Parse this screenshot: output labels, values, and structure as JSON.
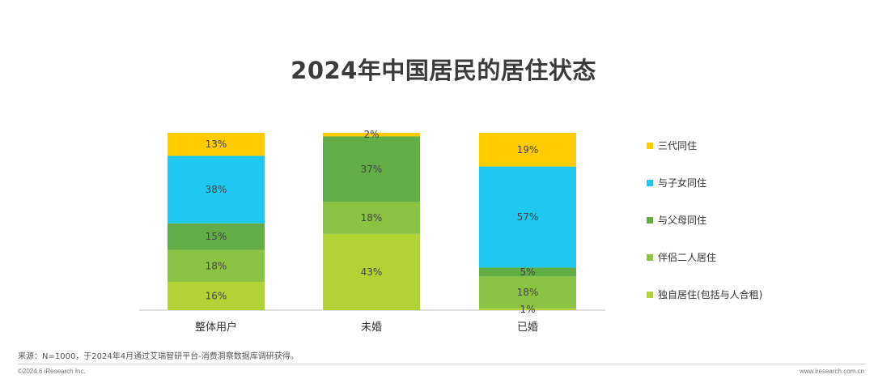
{
  "chart_data": {
    "type": "bar",
    "stacked": true,
    "normalized": true,
    "title": "2024年中国居民的居住状态",
    "categories": [
      "整体用户",
      "未婚",
      "已婚"
    ],
    "ylim": [
      0,
      100
    ],
    "legend_position": "right",
    "grid": false,
    "series": [
      {
        "name": "独自居住(包括与人合租)",
        "color": "#b3d335",
        "values": [
          16,
          43,
          1
        ]
      },
      {
        "name": "伴侣二人居住",
        "color": "#8bc443",
        "values": [
          18,
          18,
          18
        ]
      },
      {
        "name": "与父母同住",
        "color": "#63ad46",
        "values": [
          15,
          37,
          5
        ]
      },
      {
        "name": "与子女同住",
        "color": "#1ec8f0",
        "values": [
          38,
          0,
          57
        ]
      },
      {
        "name": "三代同住",
        "color": "#ffcc00",
        "values": [
          13,
          2,
          19
        ]
      }
    ],
    "legend_order": [
      4,
      3,
      2,
      1,
      0
    ]
  },
  "footer": {
    "source": "来源：N=1000，于2024年4月通过艾瑞智研平台-消费洞察数据库调研获得。",
    "copyright": "©2024.6 iResearch Inc.",
    "website": "www.iresearch.com.cn"
  }
}
